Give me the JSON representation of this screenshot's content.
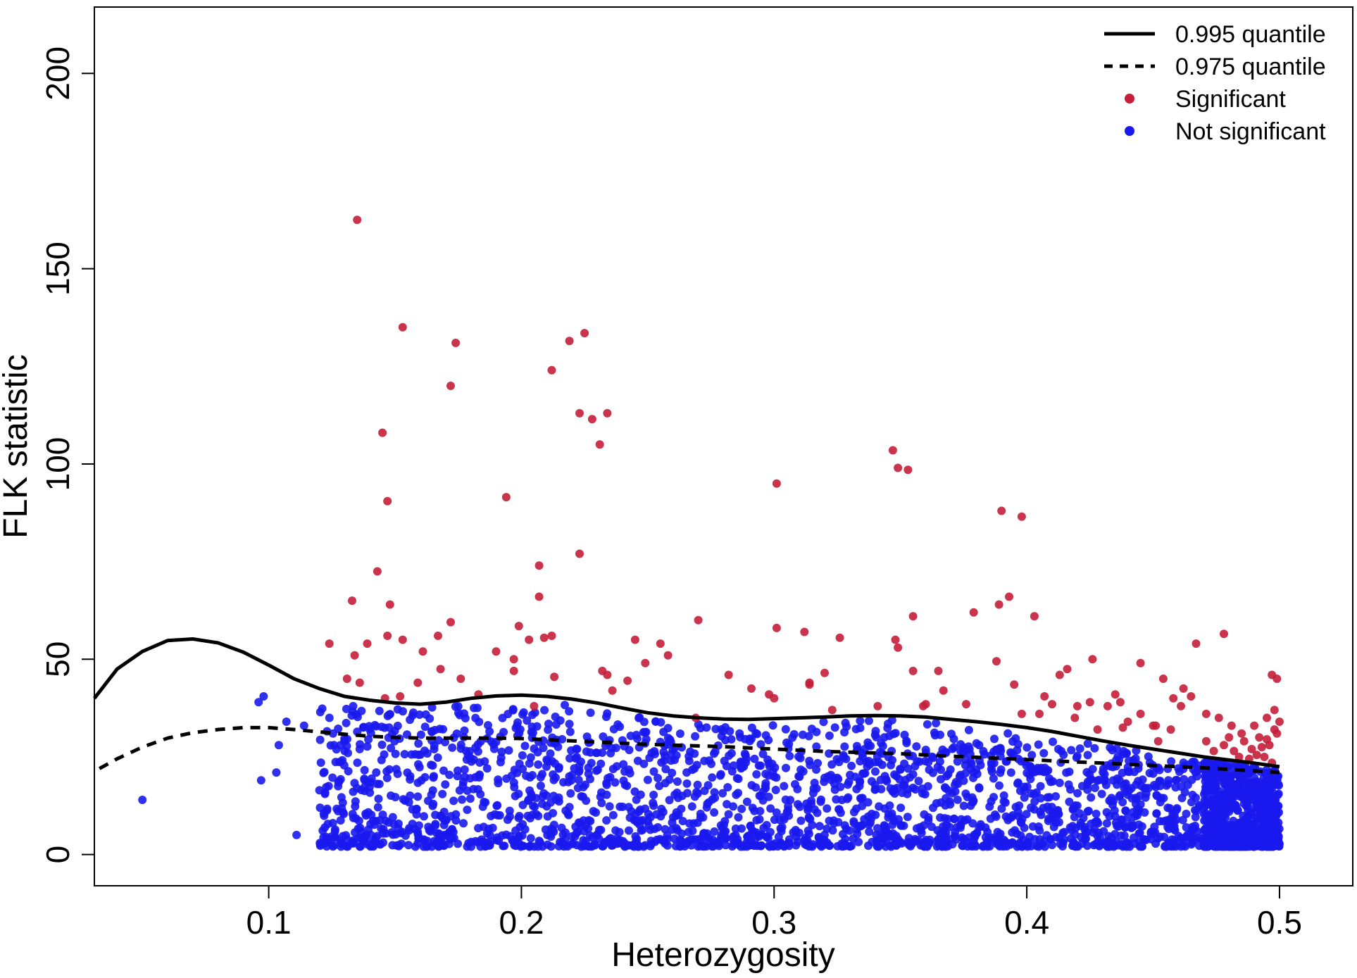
{
  "chart_data": {
    "type": "scatter",
    "xlabel": "Heterozygosity",
    "ylabel": "FLK statistic",
    "xlim": [
      0.031,
      0.529
    ],
    "ylim": [
      -8,
      217
    ],
    "x_ticks": [
      0.1,
      0.2,
      0.3,
      0.4,
      0.5
    ],
    "x_tick_labels": [
      "0.1",
      "0.2",
      "0.3",
      "0.4",
      "0.5"
    ],
    "y_ticks": [
      0,
      50,
      100,
      150,
      200
    ],
    "y_tick_labels": [
      "0",
      "50",
      "100",
      "150",
      "200"
    ],
    "grid": false,
    "legend_position": "top-right",
    "legend": [
      {
        "label": "0.995 quantile",
        "kind": "solid-line"
      },
      {
        "label": "0.975 quantile",
        "kind": "dashed-line"
      },
      {
        "label": "Significant",
        "kind": "point"
      },
      {
        "label": "Not significant",
        "kind": "point"
      }
    ],
    "colors": {
      "significant": "#c41e3a",
      "not_significant": "#1a1aee",
      "line": "#000000"
    },
    "series": [
      {
        "name": "0.995 quantile",
        "kind": "line",
        "x": [
          0.031,
          0.04,
          0.05,
          0.06,
          0.07,
          0.08,
          0.09,
          0.1,
          0.11,
          0.12,
          0.13,
          0.14,
          0.15,
          0.16,
          0.17,
          0.18,
          0.19,
          0.2,
          0.21,
          0.22,
          0.23,
          0.24,
          0.25,
          0.26,
          0.27,
          0.28,
          0.29,
          0.3,
          0.31,
          0.32,
          0.33,
          0.34,
          0.35,
          0.36,
          0.37,
          0.38,
          0.39,
          0.4,
          0.41,
          0.42,
          0.43,
          0.44,
          0.45,
          0.46,
          0.47,
          0.48,
          0.49,
          0.5
        ],
        "y": [
          40,
          47.5,
          52,
          54.8,
          55.2,
          54.2,
          51.8,
          48.5,
          45,
          42.5,
          40.5,
          39.5,
          38.8,
          38.5,
          39,
          40,
          40.6,
          40.8,
          40.5,
          39.8,
          38.8,
          37.5,
          36.3,
          35.5,
          35,
          34.7,
          34.6,
          34.8,
          35,
          35.2,
          35.5,
          35.6,
          35.5,
          35.2,
          34.6,
          34,
          33.3,
          32.5,
          31.5,
          30.3,
          29.1,
          28,
          27,
          26,
          25,
          24.2,
          23.4,
          22.5
        ]
      },
      {
        "name": "0.975 quantile",
        "kind": "dashed-line",
        "x": [
          0.033,
          0.04,
          0.05,
          0.06,
          0.07,
          0.08,
          0.09,
          0.1,
          0.11,
          0.12,
          0.13,
          0.14,
          0.15,
          0.16,
          0.17,
          0.18,
          0.19,
          0.2,
          0.21,
          0.22,
          0.23,
          0.24,
          0.25,
          0.26,
          0.27,
          0.28,
          0.29,
          0.3,
          0.31,
          0.32,
          0.33,
          0.34,
          0.35,
          0.36,
          0.37,
          0.38,
          0.39,
          0.4,
          0.41,
          0.42,
          0.43,
          0.44,
          0.45,
          0.46,
          0.47,
          0.48,
          0.49,
          0.5
        ],
        "y": [
          22,
          24.5,
          27.5,
          29.8,
          31.2,
          32,
          32.5,
          32.5,
          32,
          31.4,
          30.8,
          30.3,
          30,
          29.8,
          29.8,
          29.8,
          29.8,
          29.7,
          29.4,
          29.1,
          28.8,
          28.5,
          28.2,
          28,
          27.8,
          27.6,
          27.3,
          27,
          26.7,
          26.4,
          26.2,
          26,
          25.8,
          25.5,
          25.2,
          24.9,
          24.6,
          24.3,
          24,
          23.7,
          23.4,
          23.1,
          22.8,
          22.5,
          22.2,
          21.8,
          21.4,
          21
        ]
      },
      {
        "name": "Significant",
        "kind": "points",
        "points": [
          [
            0.135,
            162.5
          ],
          [
            0.153,
            135
          ],
          [
            0.174,
            131
          ],
          [
            0.172,
            120
          ],
          [
            0.219,
            131.5
          ],
          [
            0.225,
            133.5
          ],
          [
            0.212,
            124
          ],
          [
            0.145,
            108
          ],
          [
            0.147,
            90.5
          ],
          [
            0.223,
            113
          ],
          [
            0.228,
            111.5
          ],
          [
            0.234,
            113
          ],
          [
            0.231,
            105
          ],
          [
            0.194,
            91.5
          ],
          [
            0.207,
            74
          ],
          [
            0.223,
            77
          ],
          [
            0.143,
            72.5
          ],
          [
            0.133,
            65
          ],
          [
            0.148,
            64
          ],
          [
            0.207,
            66
          ],
          [
            0.301,
            95
          ],
          [
            0.347,
            103.5
          ],
          [
            0.349,
            99
          ],
          [
            0.353,
            98.5
          ],
          [
            0.39,
            88
          ],
          [
            0.398,
            86.5
          ],
          [
            0.393,
            66
          ],
          [
            0.389,
            64
          ],
          [
            0.403,
            61
          ],
          [
            0.379,
            62
          ],
          [
            0.355,
            61
          ],
          [
            0.27,
            60
          ],
          [
            0.301,
            58
          ],
          [
            0.312,
            57
          ],
          [
            0.172,
            59.5
          ],
          [
            0.199,
            58.5
          ],
          [
            0.212,
            56
          ],
          [
            0.209,
            55.5
          ],
          [
            0.167,
            56
          ],
          [
            0.147,
            56
          ],
          [
            0.139,
            54
          ],
          [
            0.124,
            54
          ],
          [
            0.134,
            51
          ],
          [
            0.153,
            55
          ],
          [
            0.19,
            52
          ],
          [
            0.197,
            50
          ],
          [
            0.203,
            55
          ],
          [
            0.245,
            55
          ],
          [
            0.255,
            54
          ],
          [
            0.258,
            51
          ],
          [
            0.249,
            49
          ],
          [
            0.326,
            55.5
          ],
          [
            0.348,
            55
          ],
          [
            0.349,
            53
          ],
          [
            0.388,
            49.5
          ],
          [
            0.478,
            56.5
          ],
          [
            0.467,
            54
          ],
          [
            0.426,
            50
          ],
          [
            0.445,
            49
          ],
          [
            0.355,
            47
          ],
          [
            0.365,
            47
          ],
          [
            0.32,
            46.5
          ],
          [
            0.314,
            44
          ],
          [
            0.291,
            42.5
          ],
          [
            0.282,
            46
          ],
          [
            0.298,
            41
          ],
          [
            0.234,
            46
          ],
          [
            0.161,
            52
          ],
          [
            0.168,
            47.5
          ],
          [
            0.159,
            44
          ],
          [
            0.176,
            45
          ],
          [
            0.197,
            47
          ],
          [
            0.213,
            45.5
          ],
          [
            0.232,
            47
          ],
          [
            0.236,
            42
          ],
          [
            0.242,
            44.5
          ],
          [
            0.131,
            45
          ],
          [
            0.136,
            44
          ],
          [
            0.146,
            40
          ],
          [
            0.152,
            40.5
          ],
          [
            0.183,
            41
          ],
          [
            0.205,
            38
          ],
          [
            0.269,
            35
          ],
          [
            0.3,
            40
          ],
          [
            0.323,
            37
          ],
          [
            0.314,
            43.5
          ],
          [
            0.341,
            38
          ],
          [
            0.359,
            38
          ],
          [
            0.367,
            42
          ],
          [
            0.376,
            38.5
          ],
          [
            0.395,
            43.5
          ],
          [
            0.407,
            40.5
          ],
          [
            0.413,
            46
          ],
          [
            0.416,
            47.5
          ],
          [
            0.41,
            38.5
          ],
          [
            0.405,
            36
          ],
          [
            0.419,
            35
          ],
          [
            0.432,
            38
          ],
          [
            0.435,
            41
          ],
          [
            0.437,
            39
          ],
          [
            0.454,
            45
          ],
          [
            0.458,
            40
          ],
          [
            0.465,
            40.5
          ],
          [
            0.461,
            38
          ],
          [
            0.445,
            36
          ],
          [
            0.451,
            33
          ],
          [
            0.471,
            36
          ],
          [
            0.476,
            35
          ],
          [
            0.481,
            33
          ],
          [
            0.485,
            31
          ],
          [
            0.49,
            33
          ],
          [
            0.495,
            35
          ],
          [
            0.498,
            37
          ],
          [
            0.499,
            45
          ],
          [
            0.497,
            46
          ],
          [
            0.462,
            42.5
          ],
          [
            0.45,
            33
          ],
          [
            0.457,
            32
          ],
          [
            0.471,
            29
          ],
          [
            0.478,
            28
          ],
          [
            0.482,
            26.5
          ],
          [
            0.486,
            29
          ],
          [
            0.489,
            27
          ],
          [
            0.492,
            30
          ],
          [
            0.494,
            25
          ],
          [
            0.496,
            28
          ],
          [
            0.498,
            32
          ],
          [
            0.5,
            34
          ],
          [
            0.499,
            31
          ],
          [
            0.497,
            23.5
          ],
          [
            0.493,
            27.5
          ],
          [
            0.488,
            24.5
          ],
          [
            0.484,
            25
          ],
          [
            0.42,
            38
          ],
          [
            0.398,
            36
          ],
          [
            0.428,
            32
          ],
          [
            0.438,
            32.5
          ],
          [
            0.36,
            38.5
          ],
          [
            0.425,
            39
          ],
          [
            0.474,
            26.5
          ],
          [
            0.48,
            30
          ],
          [
            0.491,
            25.5
          ],
          [
            0.495,
            29.5
          ],
          [
            0.44,
            34
          ],
          [
            0.452,
            29
          ]
        ]
      },
      {
        "name": "Not significant",
        "kind": "points",
        "generated": true,
        "count": 3000,
        "x_range": [
          0.12,
          0.5
        ],
        "y_range": [
          2,
          40
        ],
        "outliers": [
          [
            0.05,
            14
          ],
          [
            0.096,
            39
          ],
          [
            0.098,
            40.5
          ],
          [
            0.097,
            19
          ],
          [
            0.103,
            21
          ],
          [
            0.104,
            28
          ],
          [
            0.107,
            34
          ],
          [
            0.111,
            5
          ],
          [
            0.114,
            33
          ]
        ]
      }
    ]
  }
}
